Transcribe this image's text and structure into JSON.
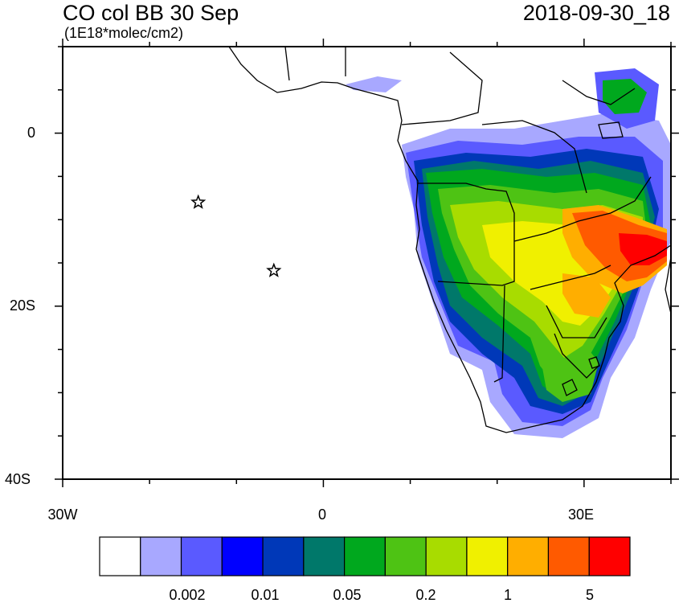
{
  "title": "CO col BB 30 Sep",
  "units": "(1E18*molec/cm2)",
  "datetime": "2018-09-30_18",
  "map": {
    "lon_range": [
      -30,
      40
    ],
    "lat_range": [
      -40,
      10
    ],
    "lat_tick_labels": [
      "0",
      "20S",
      "40S"
    ],
    "lon_tick_labels": [
      "30W",
      "0",
      "30E"
    ],
    "stars": [
      {
        "name": "star-saint-helena",
        "lon": -14.4,
        "lat": -8.0
      },
      {
        "name": "star-ascension",
        "lon": -5.7,
        "lat": -15.9
      }
    ]
  },
  "colorbar": {
    "colors": [
      "#ffffff",
      "#a8a8ff",
      "#5a5aff",
      "#0000ff",
      "#0038b8",
      "#00786a",
      "#00a81e",
      "#4ec314",
      "#a8dc00",
      "#f0f000",
      "#ffae00",
      "#ff5a00",
      "#ff0000"
    ],
    "labels": [
      "0.002",
      "0.01",
      "0.05",
      "0.2",
      "1",
      "5"
    ]
  },
  "colors": {
    "coastline": "#000000",
    "background": "#ffffff"
  }
}
